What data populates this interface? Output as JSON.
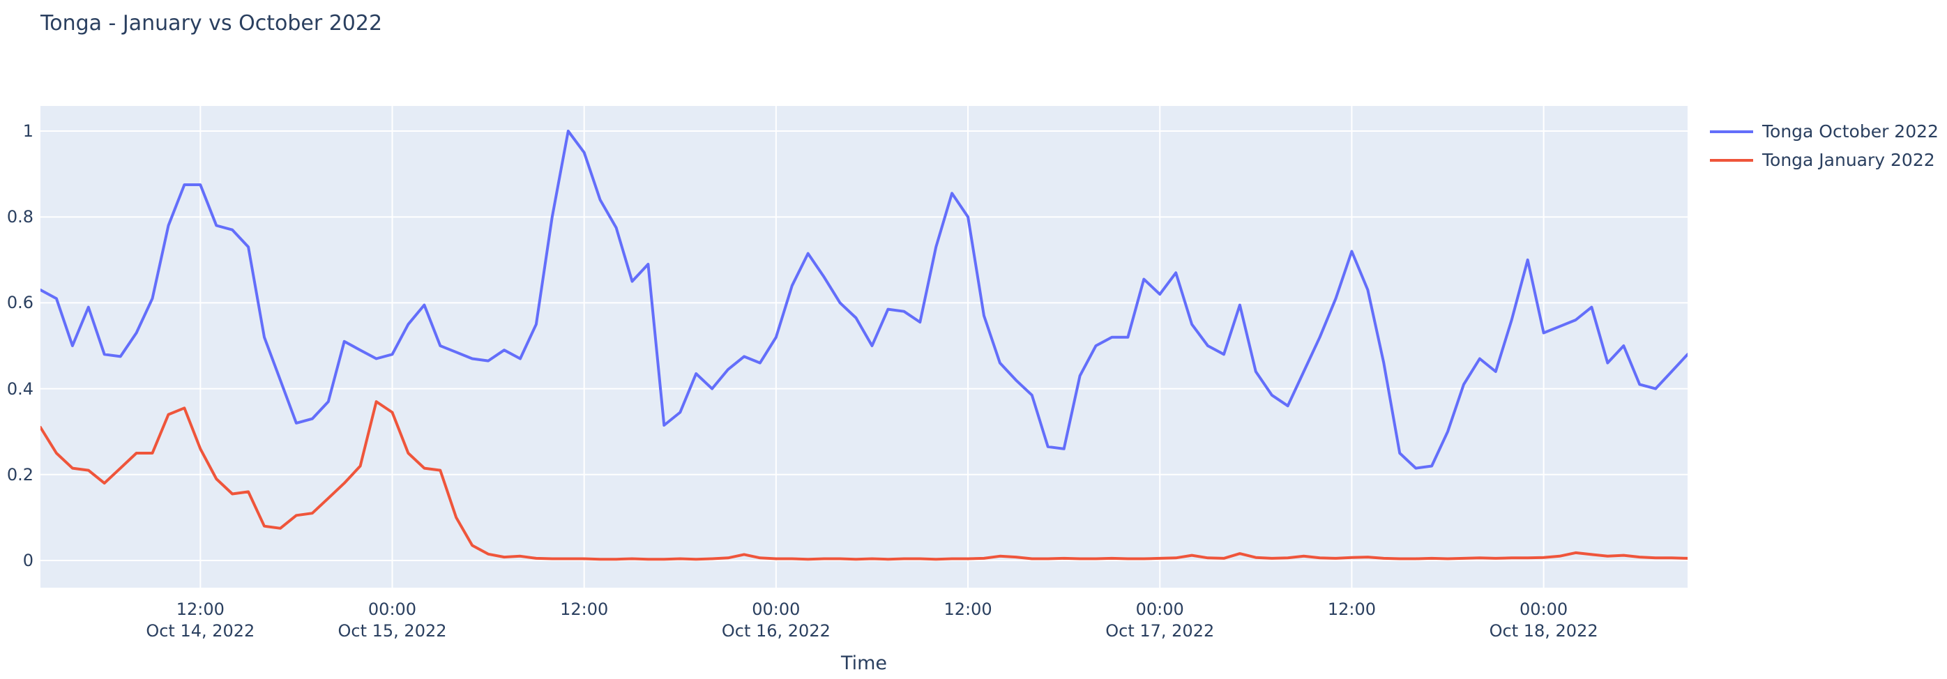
{
  "page": {
    "background": "#FFFFFF"
  },
  "chart_data": {
    "type": "line",
    "title": "Tonga - January vs October 2022",
    "xlabel": "Time",
    "ylabel": "",
    "grid": "on",
    "legend_position": "top-right",
    "plot_bgcolor": "#E5ECF6",
    "grid_color": "#FFFFFF",
    "text_color": "#2A3F5F",
    "x_start": "2022-10-14 02:00",
    "x_step_hours": 1,
    "x_range_hours": [
      2,
      105
    ],
    "y_range": [
      -0.063,
      1.058
    ],
    "y_ticks": [
      {
        "value": 0,
        "label": "0"
      },
      {
        "value": 0.2,
        "label": "0.2"
      },
      {
        "value": 0.4,
        "label": "0.4"
      },
      {
        "value": 0.6,
        "label": "0.6"
      },
      {
        "value": 0.8,
        "label": "0.8"
      },
      {
        "value": 1,
        "label": "1"
      }
    ],
    "x_ticks": [
      {
        "hour": 12,
        "line1": "12:00",
        "line2": "Oct 14, 2022"
      },
      {
        "hour": 24,
        "line1": "00:00",
        "line2": "Oct 15, 2022"
      },
      {
        "hour": 36,
        "line1": "12:00",
        "line2": ""
      },
      {
        "hour": 48,
        "line1": "00:00",
        "line2": "Oct 16, 2022"
      },
      {
        "hour": 60,
        "line1": "12:00",
        "line2": ""
      },
      {
        "hour": 72,
        "line1": "00:00",
        "line2": "Oct 17, 2022"
      },
      {
        "hour": 84,
        "line1": "12:00",
        "line2": ""
      },
      {
        "hour": 96,
        "line1": "00:00",
        "line2": "Oct 18, 2022"
      }
    ],
    "series": [
      {
        "name": "Tonga October 2022",
        "color": "#636EFA",
        "values": [
          0.63,
          0.61,
          0.5,
          0.59,
          0.48,
          0.475,
          0.53,
          0.61,
          0.78,
          0.875,
          0.875,
          0.78,
          0.77,
          0.73,
          0.52,
          0.42,
          0.32,
          0.33,
          0.37,
          0.51,
          0.49,
          0.47,
          0.48,
          0.55,
          0.595,
          0.5,
          0.485,
          0.47,
          0.465,
          0.49,
          0.47,
          0.55,
          0.8,
          1.0,
          0.95,
          0.84,
          0.775,
          0.65,
          0.69,
          0.315,
          0.345,
          0.435,
          0.4,
          0.445,
          0.475,
          0.46,
          0.52,
          0.64,
          0.715,
          0.66,
          0.6,
          0.565,
          0.5,
          0.585,
          0.58,
          0.555,
          0.73,
          0.855,
          0.8,
          0.57,
          0.46,
          0.42,
          0.385,
          0.265,
          0.26,
          0.43,
          0.5,
          0.52,
          0.52,
          0.655,
          0.62,
          0.67,
          0.55,
          0.5,
          0.48,
          0.595,
          0.44,
          0.385,
          0.36,
          0.44,
          0.52,
          0.61,
          0.72,
          0.63,
          0.46,
          0.25,
          0.215,
          0.22,
          0.3,
          0.41,
          0.47,
          0.44,
          0.56,
          0.7,
          0.53,
          0.545,
          0.56,
          0.59,
          0.46,
          0.5,
          0.41,
          0.4,
          0.44,
          0.48
        ]
      },
      {
        "name": "Tonga January 2022",
        "color": "#EF553B",
        "values": [
          0.31,
          0.25,
          0.215,
          0.21,
          0.18,
          0.215,
          0.25,
          0.25,
          0.34,
          0.355,
          0.26,
          0.19,
          0.155,
          0.16,
          0.08,
          0.075,
          0.105,
          0.11,
          0.145,
          0.18,
          0.22,
          0.37,
          0.345,
          0.25,
          0.215,
          0.21,
          0.1,
          0.035,
          0.015,
          0.008,
          0.01,
          0.005,
          0.004,
          0.004,
          0.004,
          0.003,
          0.003,
          0.004,
          0.003,
          0.003,
          0.004,
          0.003,
          0.004,
          0.006,
          0.014,
          0.006,
          0.004,
          0.004,
          0.003,
          0.004,
          0.004,
          0.003,
          0.004,
          0.003,
          0.004,
          0.004,
          0.003,
          0.004,
          0.004,
          0.005,
          0.01,
          0.008,
          0.004,
          0.004,
          0.005,
          0.004,
          0.004,
          0.005,
          0.004,
          0.004,
          0.005,
          0.006,
          0.012,
          0.006,
          0.005,
          0.016,
          0.007,
          0.005,
          0.006,
          0.01,
          0.006,
          0.005,
          0.007,
          0.008,
          0.005,
          0.004,
          0.004,
          0.005,
          0.004,
          0.005,
          0.006,
          0.005,
          0.006,
          0.006,
          0.007,
          0.01,
          0.018,
          0.014,
          0.01,
          0.012,
          0.008,
          0.006,
          0.006,
          0.005
        ]
      }
    ]
  }
}
